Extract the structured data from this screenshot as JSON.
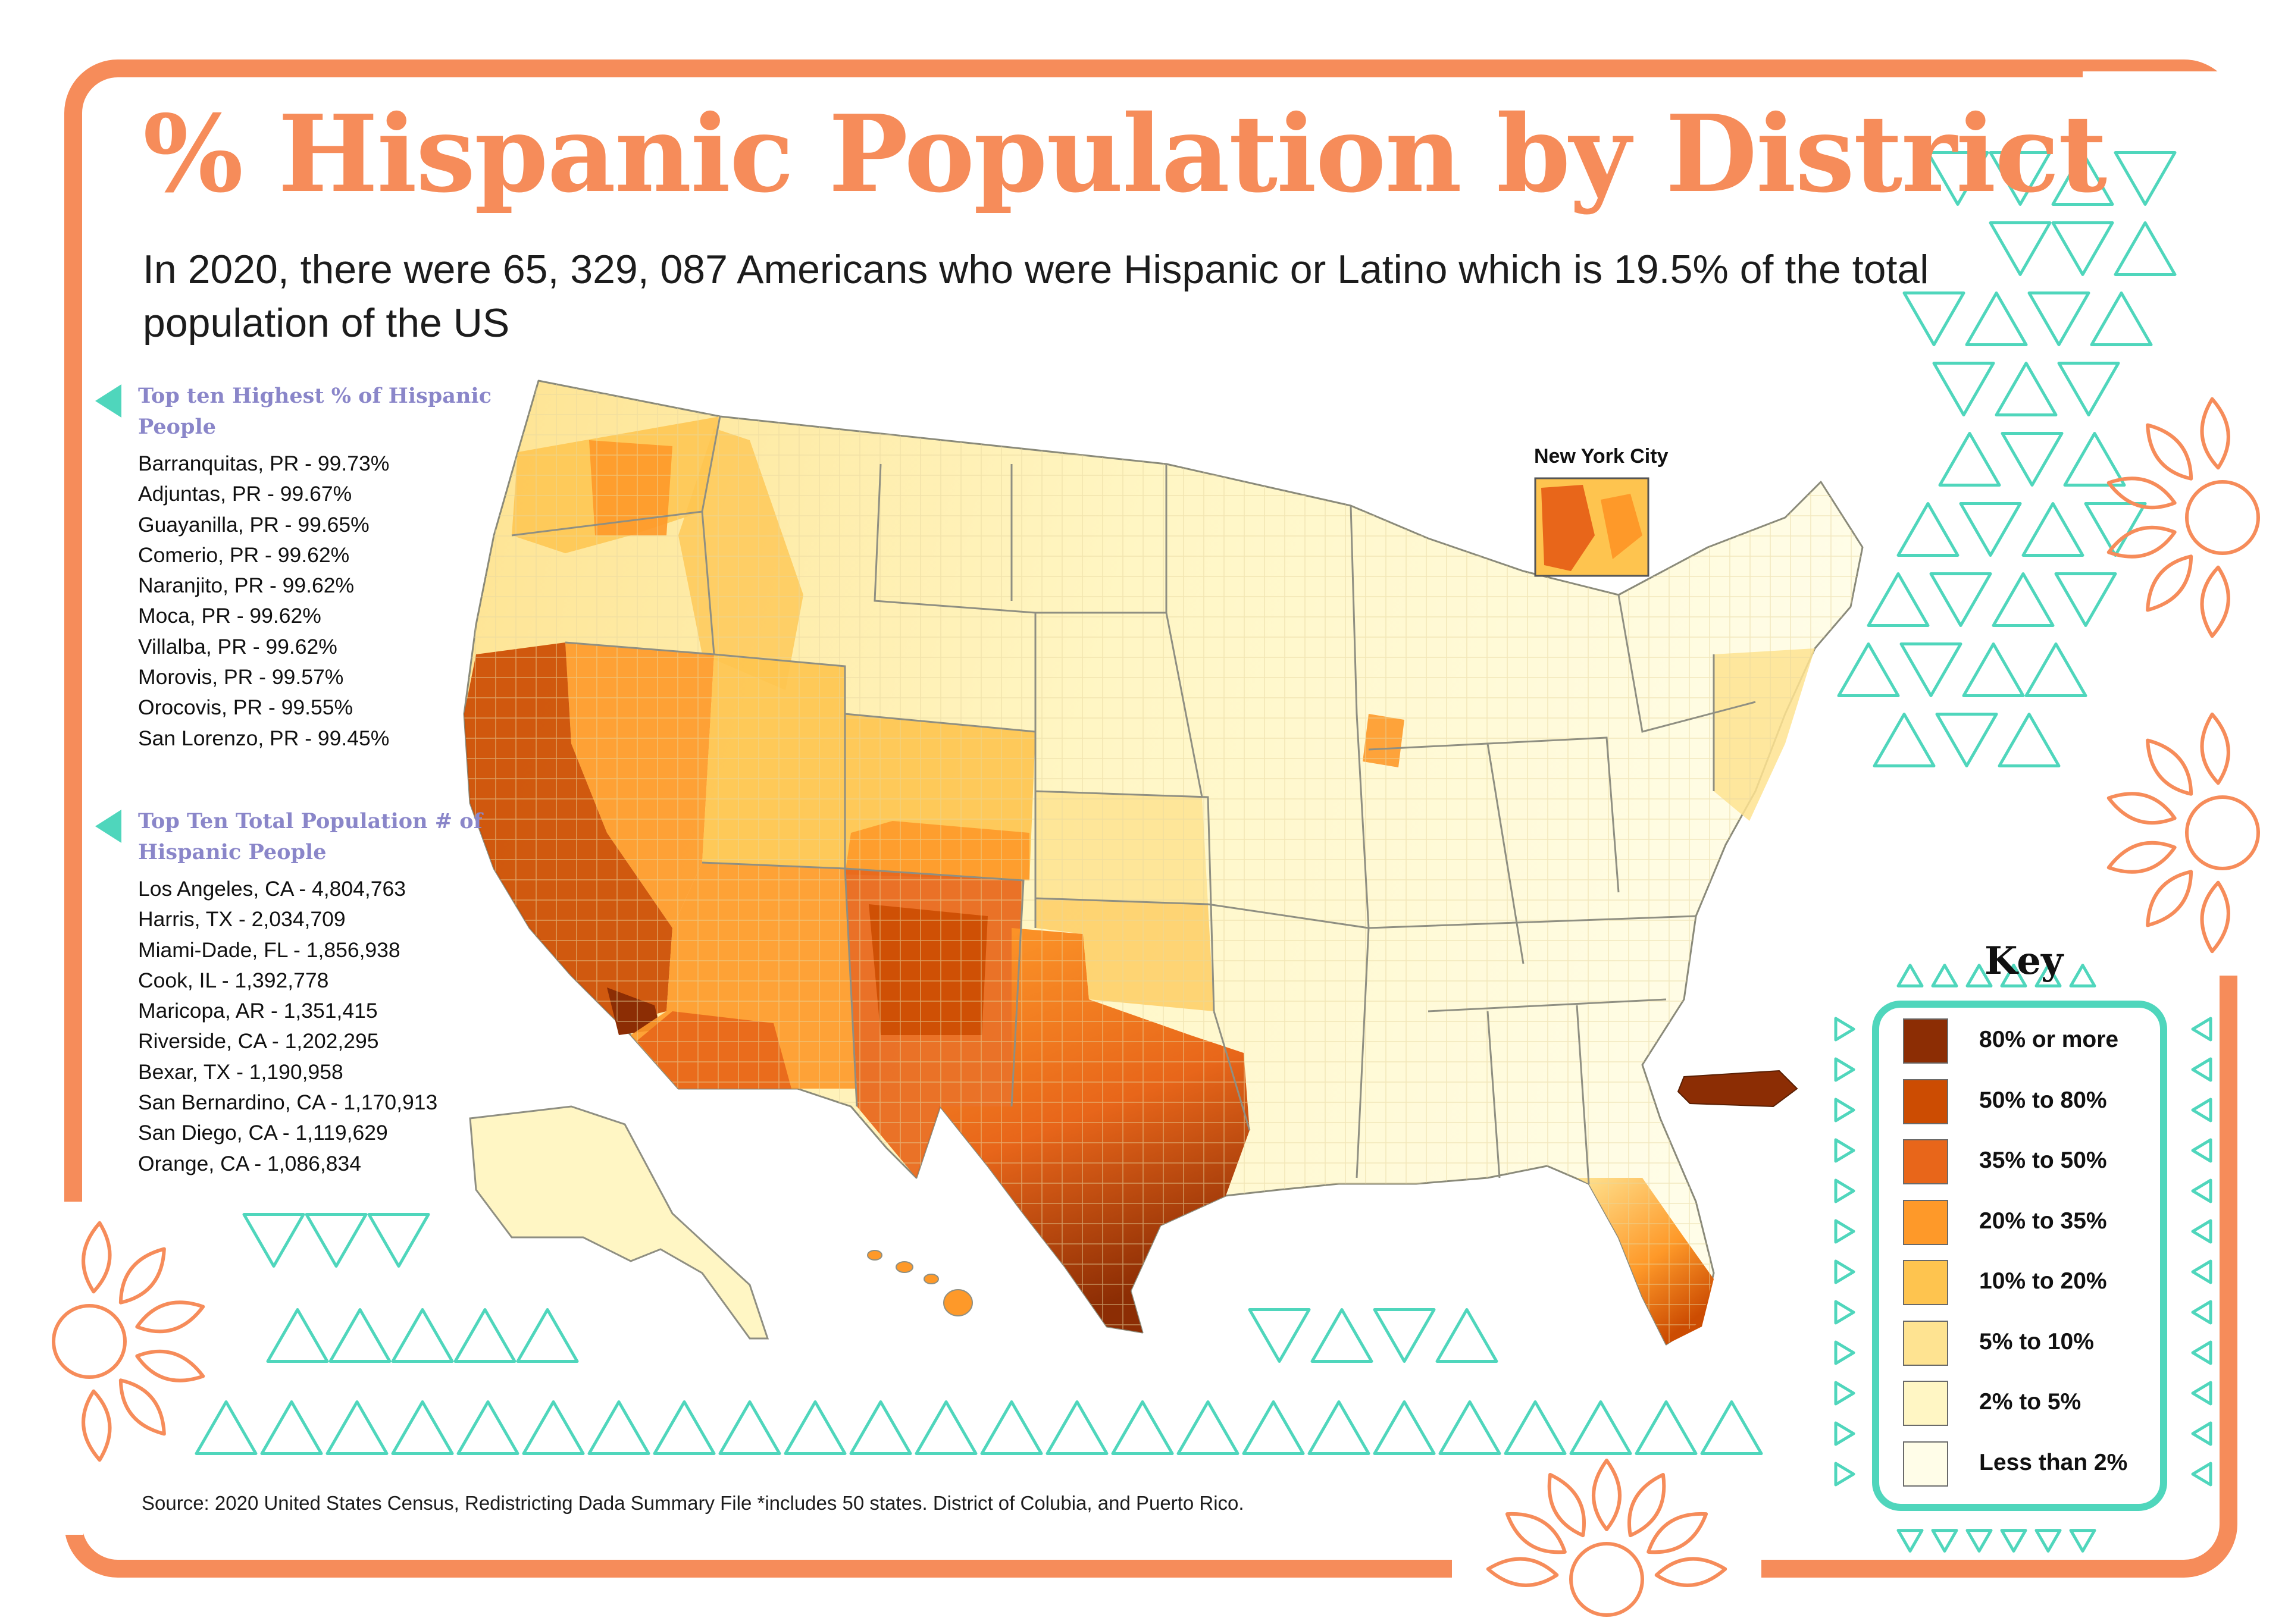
{
  "header": {
    "title": "% Hispanic Population by District",
    "subtitle": "In 2020, there were 65, 329, 087 Americans who were Hispanic or Latino which is 19.5% of the total population of the US"
  },
  "highest_percent": {
    "heading": "Top ten Highest % of Hispanic People",
    "items": [
      "Barranquitas, PR - 99.73%",
      "Adjuntas, PR - 99.67%",
      "Guayanilla, PR - 99.65%",
      "Comerio, PR - 99.62%",
      "Naranjito, PR - 99.62%",
      "Moca, PR - 99.62%",
      "Villalba, PR - 99.62%",
      "Morovis, PR - 99.57%",
      "Orocovis, PR - 99.55%",
      "San Lorenzo, PR - 99.45%"
    ]
  },
  "total_population": {
    "heading": "Top Ten Total Population # of Hispanic People",
    "items": [
      "Los Angeles, CA - 4,804,763",
      "Harris, TX - 2,034,709",
      "Miami-Dade, FL - 1,856,938",
      "Cook, IL - 1,392,778",
      "Maricopa, AR - 1,351,415",
      "Riverside, CA - 1,202,295",
      "Bexar, TX - 1,190,958",
      "San Bernardino, CA - 1,170,913",
      "San Diego, CA - 1,119,629",
      "Orange, CA - 1,086,834"
    ]
  },
  "map": {
    "inset_label": "New York City"
  },
  "legend": {
    "title": "Key",
    "items": [
      {
        "label": "80% or more",
        "color": "#8c2d04"
      },
      {
        "label": "50% to 80%",
        "color": "#cc4c02"
      },
      {
        "label": "35% to 50%",
        "color": "#e8661a"
      },
      {
        "label": "20% to 35%",
        "color": "#fe9929"
      },
      {
        "label": "10% to 20%",
        "color": "#fec44f"
      },
      {
        "label": "5% to 10%",
        "color": "#fee391"
      },
      {
        "label": "2% to 5%",
        "color": "#fff6c4"
      },
      {
        "label": "Less than 2%",
        "color": "#fffde8"
      }
    ]
  },
  "source": "Source: 2020 United States Census, Redistricting Dada Summary File *includes 50 states. District of Colubia, and Puerto Rico.",
  "colors": {
    "accent": "#f68c5a",
    "teal": "#4fd6bc",
    "heading_purple": "#8a86c9"
  }
}
